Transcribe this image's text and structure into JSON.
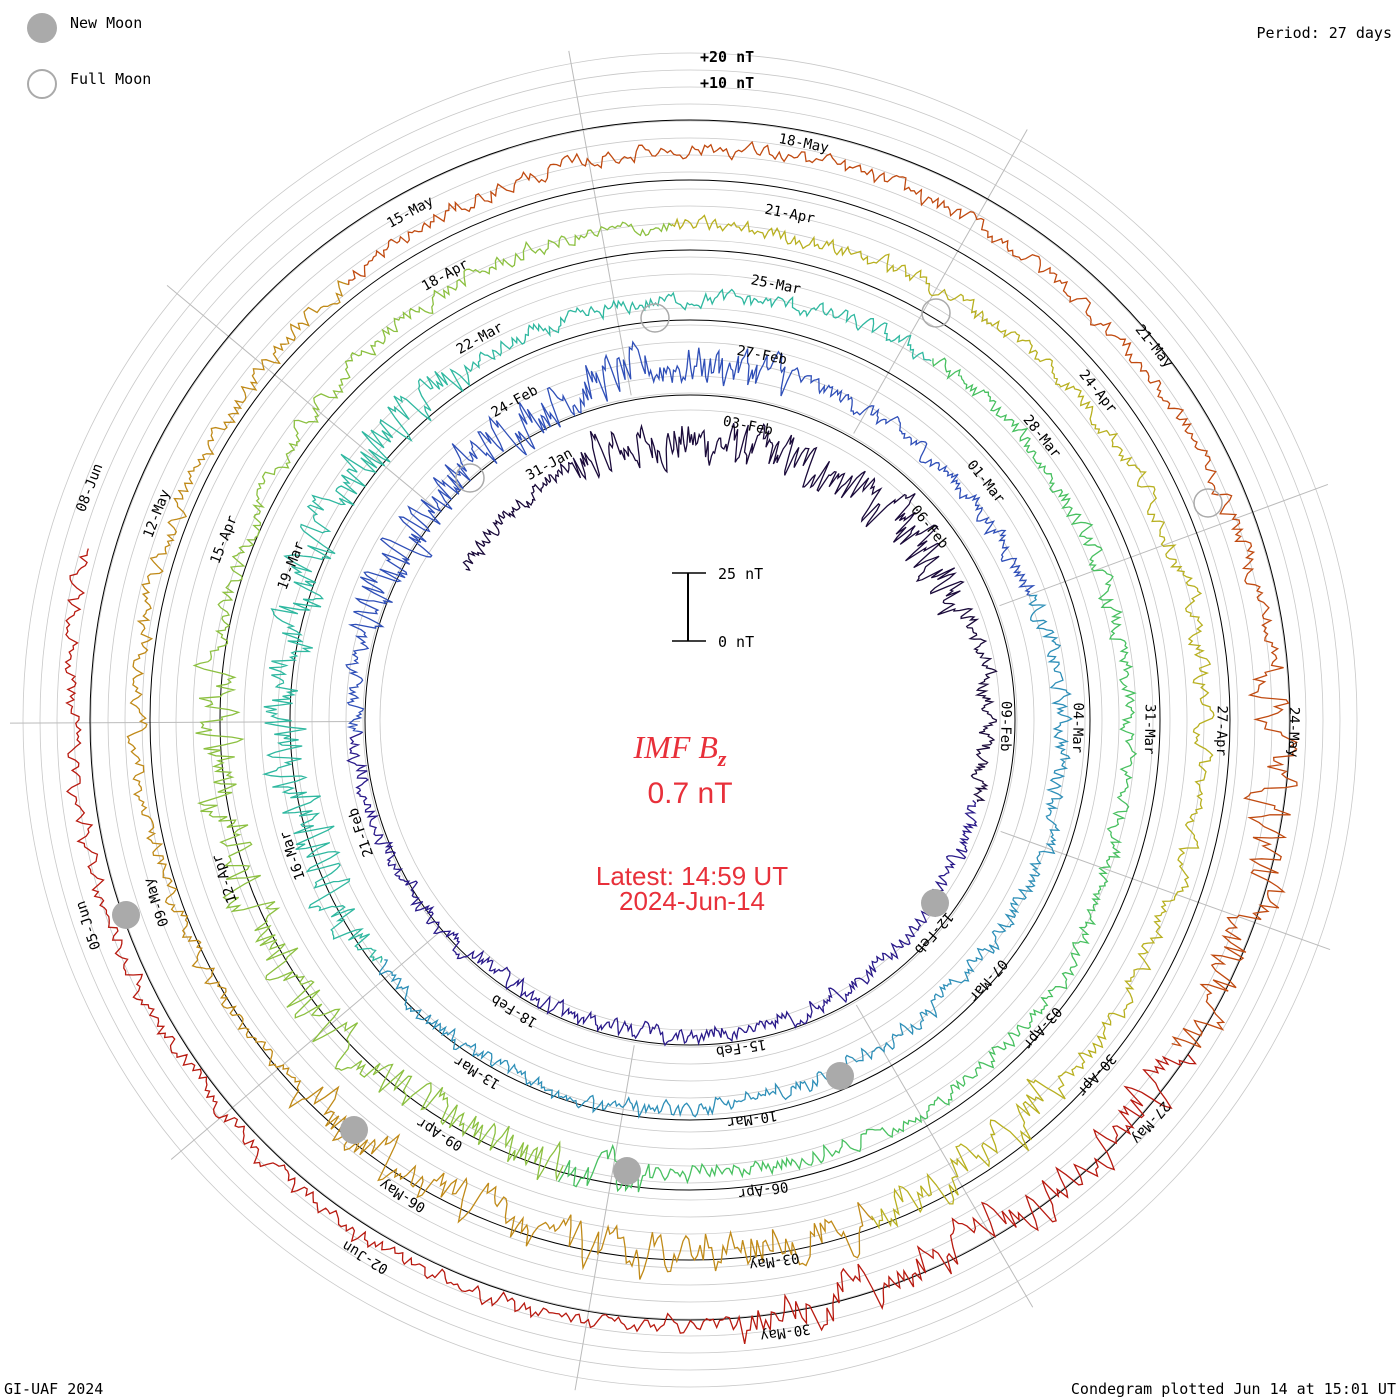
{
  "legend": {
    "new_moon_label": "New Moon",
    "full_moon_label": "Full Moon"
  },
  "period_label": "Period: 27 days",
  "scale_labels": {
    "plus20": "+20 nT",
    "plus10": "+10 nT"
  },
  "scale_bar": {
    "top_label": "25 nT",
    "bottom_label": "0 nT"
  },
  "center": {
    "title_main": "IMF B",
    "title_sub": "z",
    "value": "0.7 nT",
    "latest": "Latest: 14:59 UT",
    "date": "2024-Jun-14"
  },
  "footer": {
    "left": "GI-UAF 2024",
    "right": "Condegram plotted Jun 14 at 15:01 UT"
  },
  "colors": {
    "red_text": "#e8303a",
    "grid": "#bbbbbb",
    "moon": "#aaaaaa",
    "cycles": [
      "#1a0a3a",
      "#2a1a8a",
      "#2f4fb8",
      "#2e8fb8",
      "#2fb8a0",
      "#48c060",
      "#8cc040",
      "#b8b020",
      "#c08a18",
      "#c04a10",
      "#b81a10"
    ]
  },
  "chart_data": {
    "type": "condegram-spiral",
    "title": "IMF Bz",
    "current_value_nT": 0.7,
    "period_days": 27,
    "scale_nT_per_ring": 10,
    "cycles": [
      {
        "index": 0,
        "labels": [
          "31-Jan",
          "03-Feb",
          "06-Feb",
          "09-Feb",
          "12-Feb",
          "15-Feb",
          "18-Feb",
          "21-Feb"
        ]
      },
      {
        "index": 1,
        "labels": [
          "24-Feb",
          "27-Feb",
          "01-Mar",
          "04-Mar",
          "07-Mar",
          "10-Mar",
          "13-Mar",
          "16-Mar",
          "19-Mar"
        ]
      },
      {
        "index": 2,
        "labels": [
          "22-Mar",
          "25-Mar",
          "28-Mar",
          "31-Mar",
          "03-Apr",
          "06-Apr",
          "09-Apr",
          "12-Apr",
          "15-Apr"
        ]
      },
      {
        "index": 3,
        "labels": [
          "18-Apr",
          "21-Apr",
          "24-Apr",
          "27-Apr",
          "30-Apr",
          "03-May",
          "06-May",
          "09-May",
          "12-May"
        ]
      },
      {
        "index": 4,
        "labels": [
          "15-May",
          "18-May",
          "21-May",
          "24-May",
          "27-May",
          "30-May",
          "02-Jun",
          "05-Jun",
          "08-Jun"
        ]
      }
    ],
    "new_moons": [
      "09-Feb",
      "10-Mar",
      "09-Apr",
      "08-May",
      "06-Jun"
    ],
    "full_moons": [
      "24-Feb",
      "25-Mar",
      "23-Apr",
      "23-May"
    ]
  }
}
